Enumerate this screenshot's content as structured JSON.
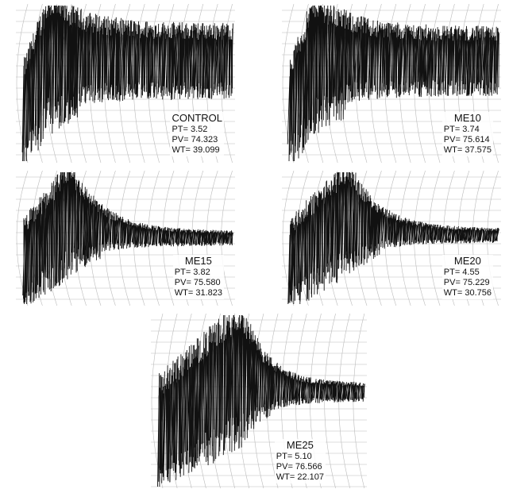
{
  "panels": [
    {
      "label": "CONTROL",
      "lines": [
        "PT= 3.52",
        "PV= 74.323",
        "WT= 39.099"
      ]
    },
    {
      "label": "ME10",
      "lines": [
        "PT= 3.74",
        "PV= 75.614",
        "WT= 37.575"
      ]
    },
    {
      "label": "ME15",
      "lines": [
        "PT= 3.82",
        "PV= 75.580",
        "WT= 31.823"
      ]
    },
    {
      "label": "ME20",
      "lines": [
        "PT= 4.55",
        "PV= 75.229",
        "WT= 30.756"
      ]
    },
    {
      "label": "ME25",
      "lines": [
        "PT= 5.10",
        "PV= 76.566",
        "WT= 22.107"
      ]
    }
  ]
}
